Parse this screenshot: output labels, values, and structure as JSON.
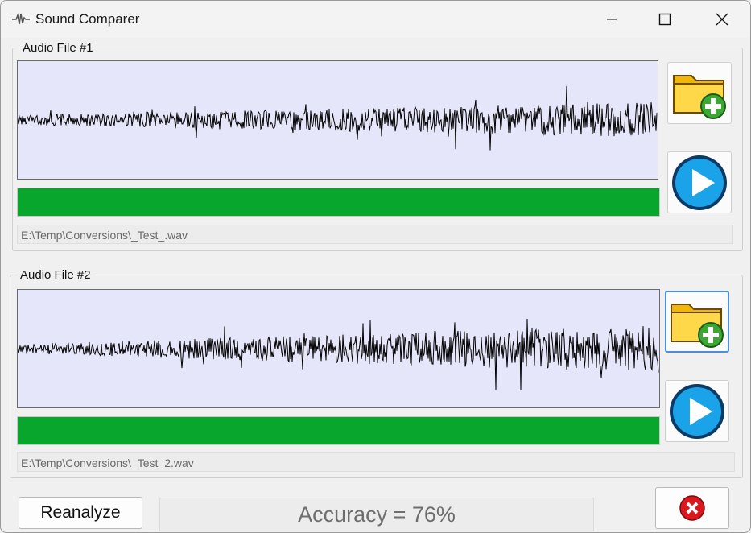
{
  "window": {
    "title": "Sound Comparer",
    "app_icon": "waveform-icon",
    "controls": [
      "minimize-icon",
      "maximize-icon",
      "close-icon"
    ]
  },
  "audio_files": [
    {
      "label": "Audio File #1",
      "path": "E:\\Temp\\Conversions\\_Test_.wav",
      "progress": 1.0,
      "open_icon": "folder-add-icon",
      "play_icon": "play-icon"
    },
    {
      "label": "Audio File #2",
      "path": "E:\\Temp\\Conversions\\_Test_2.wav",
      "progress": 1.0,
      "open_icon": "folder-add-icon",
      "play_icon": "play-icon"
    }
  ],
  "footer": {
    "reanalyze_label": "Reanalyze",
    "accuracy_text": "Accuracy = 76%",
    "exit_icon": "red-x-icon"
  },
  "colors": {
    "progress": "#08a62c",
    "wave_bg": "#e6e6fa",
    "wave": "#000000"
  }
}
